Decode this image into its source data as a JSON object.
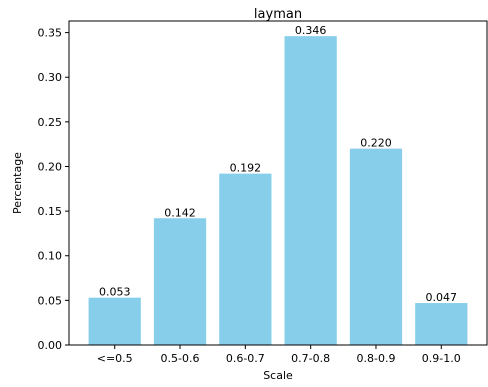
{
  "chart_data": {
    "type": "bar",
    "title": "layman",
    "xlabel": "Scale",
    "ylabel": "Percentage",
    "categories": [
      "<=0.5",
      "0.5-0.6",
      "0.6-0.7",
      "0.7-0.8",
      "0.8-0.9",
      "0.9-1.0"
    ],
    "values": [
      0.053,
      0.142,
      0.192,
      0.346,
      0.22,
      0.047
    ],
    "data_labels": [
      "0.053",
      "0.142",
      "0.192",
      "0.346",
      "0.220",
      "0.047"
    ],
    "ylim": [
      0,
      0.363
    ],
    "yticks": [
      0.0,
      0.05,
      0.1,
      0.15,
      0.2,
      0.25,
      0.3,
      0.35
    ],
    "ytick_labels": [
      "0.00",
      "0.05",
      "0.10",
      "0.15",
      "0.20",
      "0.25",
      "0.30",
      "0.35"
    ],
    "bar_color": "#87CEEB",
    "grid": false,
    "legend": "none"
  }
}
